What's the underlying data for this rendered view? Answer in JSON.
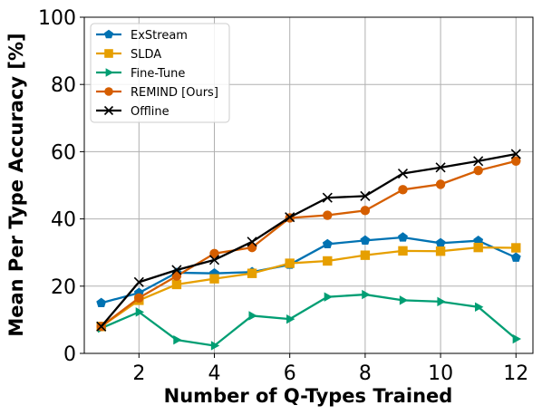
{
  "chart_data": {
    "type": "line",
    "title": "",
    "xlabel": "Number of Q-Types Trained",
    "ylabel": "Mean Per Type Accuracy [%]",
    "xlim": [
      0.55,
      12.45
    ],
    "ylim": [
      0,
      100
    ],
    "xticks": [
      2,
      4,
      6,
      8,
      10,
      12
    ],
    "yticks": [
      0,
      20,
      40,
      60,
      80,
      100
    ],
    "grid": true,
    "legend_position": "top-left",
    "x": [
      1,
      2,
      3,
      4,
      5,
      6,
      7,
      8,
      9,
      10,
      11,
      12
    ],
    "series": [
      {
        "name": "ExStream",
        "color": "#0072b2",
        "marker": "pentagon",
        "values": [
          15.0,
          18.0,
          24.0,
          23.8,
          24.2,
          26.4,
          32.5,
          33.6,
          34.5,
          32.8,
          33.5,
          28.5
        ]
      },
      {
        "name": "SLDA",
        "color": "#e69f00",
        "marker": "square",
        "values": [
          8.0,
          15.8,
          20.5,
          22.2,
          23.8,
          26.8,
          27.5,
          29.2,
          30.5,
          30.4,
          31.5,
          31.4
        ]
      },
      {
        "name": "Fine-Tune",
        "color": "#009e73",
        "marker": "triangle-right",
        "values": [
          7.5,
          12.3,
          4.0,
          2.3,
          11.2,
          10.2,
          16.8,
          17.5,
          15.8,
          15.4,
          13.8,
          4.3
        ]
      },
      {
        "name": "REMIND [Ours]",
        "color": "#d55e00",
        "marker": "circle",
        "values": [
          8.0,
          16.5,
          23.0,
          29.7,
          31.5,
          40.3,
          41.1,
          42.5,
          48.7,
          50.3,
          54.4,
          57.2
        ]
      },
      {
        "name": "Offline",
        "color": "#000000",
        "marker": "x",
        "values": [
          8.0,
          21.2,
          24.8,
          27.8,
          33.2,
          40.5,
          46.3,
          46.8,
          53.5,
          55.3,
          57.2,
          59.3
        ]
      }
    ]
  }
}
